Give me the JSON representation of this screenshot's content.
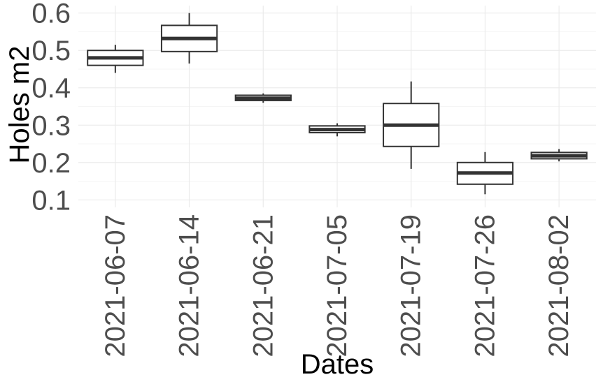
{
  "chart_data": {
    "type": "boxplot",
    "xlabel": "Dates",
    "ylabel": "Holes m2",
    "ylim": [
      0.08,
      0.62
    ],
    "yticks": [
      0.1,
      0.2,
      0.3,
      0.4,
      0.5,
      0.6
    ],
    "ytick_labels": [
      "0.1",
      "0.2",
      "0.3",
      "0.4",
      "0.5",
      "0.6"
    ],
    "grid": true,
    "categories": [
      "2021-06-07",
      "2021-06-14",
      "2021-06-21",
      "2021-07-05",
      "2021-07-19",
      "2021-07-26",
      "2021-08-02"
    ],
    "boxes": [
      {
        "min": 0.44,
        "q1": 0.46,
        "median": 0.48,
        "q3": 0.5,
        "max": 0.515
      },
      {
        "min": 0.465,
        "q1": 0.497,
        "median": 0.532,
        "q3": 0.567,
        "max": 0.6
      },
      {
        "min": 0.36,
        "q1": 0.366,
        "median": 0.372,
        "q3": 0.38,
        "max": 0.385
      },
      {
        "min": 0.27,
        "q1": 0.28,
        "median": 0.288,
        "q3": 0.298,
        "max": 0.305
      },
      {
        "min": 0.183,
        "q1": 0.243,
        "median": 0.3,
        "q3": 0.358,
        "max": 0.417
      },
      {
        "min": 0.115,
        "q1": 0.142,
        "median": 0.172,
        "q3": 0.2,
        "max": 0.228
      },
      {
        "min": 0.203,
        "q1": 0.21,
        "median": 0.218,
        "q3": 0.227,
        "max": 0.236
      }
    ]
  }
}
